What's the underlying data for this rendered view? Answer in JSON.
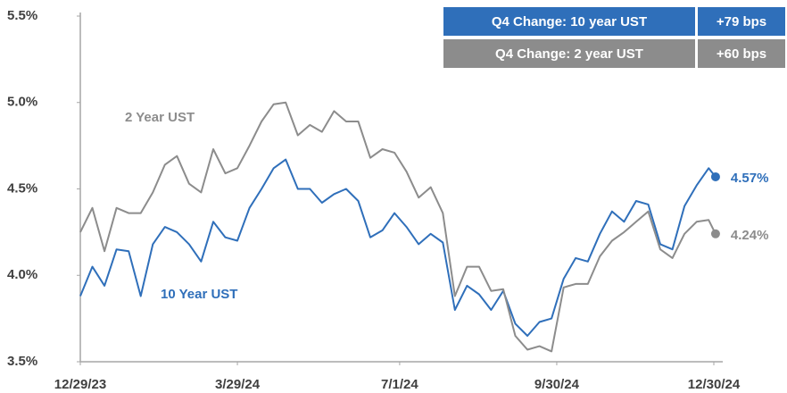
{
  "chart_data": {
    "type": "line",
    "x": [
      "12/29/23",
      "1/5/24",
      "1/12/24",
      "1/19/24",
      "1/26/24",
      "2/2/24",
      "2/9/24",
      "2/16/24",
      "2/23/24",
      "3/1/24",
      "3/8/24",
      "3/15/24",
      "3/22/24",
      "3/29/24",
      "4/5/24",
      "4/12/24",
      "4/19/24",
      "4/26/24",
      "5/3/24",
      "5/10/24",
      "5/17/24",
      "5/24/24",
      "5/31/24",
      "6/7/24",
      "6/14/24",
      "6/21/24",
      "6/28/24",
      "7/5/24",
      "7/12/24",
      "7/19/24",
      "7/26/24",
      "8/2/24",
      "8/9/24",
      "8/16/24",
      "8/23/24",
      "8/30/24",
      "9/6/24",
      "9/13/24",
      "9/20/24",
      "9/27/24",
      "10/4/24",
      "10/11/24",
      "10/18/24",
      "10/25/24",
      "11/1/24",
      "11/8/24",
      "11/15/24",
      "11/22/24",
      "11/29/24",
      "12/6/24",
      "12/13/24",
      "12/20/24",
      "12/27/24",
      "12/31/24"
    ],
    "series": [
      {
        "name": "10 Year UST",
        "color": "#2f6fba",
        "values": [
          3.88,
          4.05,
          3.94,
          4.15,
          4.14,
          3.88,
          4.18,
          4.28,
          4.25,
          4.18,
          4.08,
          4.31,
          4.22,
          4.2,
          4.39,
          4.5,
          4.62,
          4.67,
          4.5,
          4.5,
          4.42,
          4.47,
          4.5,
          4.43,
          4.22,
          4.26,
          4.36,
          4.28,
          4.18,
          4.24,
          4.19,
          3.8,
          3.94,
          3.89,
          3.8,
          3.91,
          3.72,
          3.65,
          3.73,
          3.75,
          3.98,
          4.1,
          4.08,
          4.24,
          4.37,
          4.31,
          4.43,
          4.41,
          4.18,
          4.15,
          4.4,
          4.52,
          4.62,
          4.57
        ],
        "value_labels": [
          null,
          null,
          null,
          null,
          null,
          null,
          null,
          null,
          null,
          null,
          null,
          null,
          null,
          null,
          null,
          null,
          null,
          null,
          null,
          null,
          null,
          null,
          null,
          null,
          null,
          null,
          null,
          null,
          null,
          null,
          null,
          null,
          null,
          null,
          null,
          null,
          null,
          null,
          null,
          null,
          null,
          null,
          null,
          null,
          null,
          null,
          null,
          null,
          null,
          null,
          null,
          null,
          null,
          "4.57%"
        ]
      },
      {
        "name": "2 Year UST",
        "color": "#8c8c8c",
        "values": [
          4.25,
          4.39,
          4.14,
          4.39,
          4.36,
          4.36,
          4.48,
          4.64,
          4.69,
          4.53,
          4.48,
          4.73,
          4.59,
          4.62,
          4.75,
          4.89,
          4.99,
          5.0,
          4.81,
          4.87,
          4.83,
          4.95,
          4.89,
          4.89,
          4.68,
          4.73,
          4.71,
          4.6,
          4.45,
          4.51,
          4.36,
          3.88,
          4.05,
          4.05,
          3.91,
          3.92,
          3.65,
          3.57,
          3.59,
          3.56,
          3.93,
          3.95,
          3.95,
          4.11,
          4.2,
          4.25,
          4.31,
          4.37,
          4.15,
          4.1,
          4.24,
          4.31,
          4.32,
          4.24
        ],
        "value_labels": [
          null,
          null,
          null,
          null,
          null,
          null,
          null,
          null,
          null,
          null,
          null,
          null,
          null,
          null,
          null,
          null,
          null,
          null,
          null,
          null,
          null,
          null,
          null,
          null,
          null,
          null,
          null,
          null,
          null,
          null,
          null,
          null,
          null,
          null,
          null,
          null,
          null,
          null,
          null,
          null,
          null,
          null,
          null,
          null,
          null,
          null,
          null,
          null,
          null,
          null,
          null,
          null,
          null,
          "4.24%"
        ]
      }
    ],
    "ylim": [
      3.5,
      5.5
    ],
    "yticks": [
      {
        "value": 3.5,
        "label": "3.5%"
      },
      {
        "value": 4.0,
        "label": "4.0%"
      },
      {
        "value": 4.5,
        "label": "4.5%"
      },
      {
        "value": 5.0,
        "label": "5.0%"
      },
      {
        "value": 5.5,
        "label": "5.5%"
      }
    ],
    "xticks": [
      "12/29/23",
      "3/29/24",
      "7/1/24",
      "9/30/24",
      "12/30/24"
    ],
    "summary_table": [
      {
        "label": "Q4 Change: 10 year UST",
        "value": "+79 bps",
        "color": "#2f6fba"
      },
      {
        "label": "Q4 Change: 2 year UST",
        "value": "+60 bps",
        "color": "#8c8c8c"
      }
    ]
  }
}
